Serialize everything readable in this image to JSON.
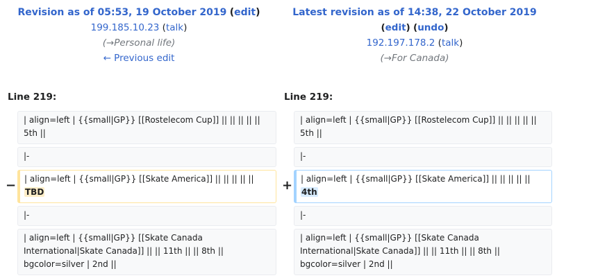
{
  "left": {
    "title": "Revision as of 05:53, 19 October 2019",
    "edit": "edit",
    "user": "199.185.10.23",
    "talk": "talk",
    "summary": "(→Personal life)",
    "prev": "← Previous edit",
    "line": "Line 219:"
  },
  "right": {
    "title": "Latest revision as of 14:38, 22 October 2019",
    "edit": "edit",
    "undo": "undo",
    "user": "192.197.178.2",
    "talk": "talk",
    "summary": "(→For Canada)",
    "line": "Line 219:"
  },
  "diff": {
    "row1": "| align=left | {{small|GP}} [[Rostelecom Cup]] || || || || || 5th ||",
    "row2": "|-",
    "row3_prefix": "| align=left | {{small|GP}} [[Skate America]] || || || || || ",
    "row3_left_changed": "TBD",
    "row3_right_changed": "4th",
    "row4": "|-",
    "row5": "| align=left | {{small|GP}} [[Skate Canada International|Skate Canada]] || || 11th || || 8th || bgcolor=silver | 2nd ||",
    "minus": "−",
    "plus": "+"
  }
}
